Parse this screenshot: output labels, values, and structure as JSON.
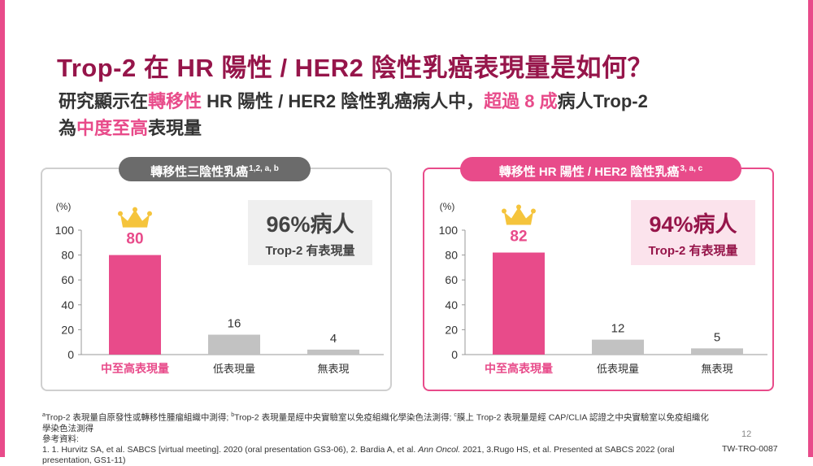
{
  "slide": {
    "title": "Trop-2 在 HR 陽性 / HER2 陰性乳癌表現量是如何？",
    "subtitle": {
      "part1": "研究顯示在",
      "hl1": "轉移性",
      "part2": " HR 陽性 / HER2 陰性乳癌病人中，",
      "hl2": "超過 8 成",
      "part3": "病人Trop-2",
      "hl3": "中度至高",
      "part4_prefix": "為",
      "part4": "表現量"
    },
    "footnote": {
      "line1_a": "a",
      "line1_a_text": "Trop-2 表現量自原發性或轉移性腫瘤組織中測得; ",
      "line1_b": "b",
      "line1_b_text": "Trop-2 表現量是經中央實驗室以免疫組織化學染色法測得; ",
      "line1_c": "c",
      "line1_c_text": "膜上 Trop-2 表現量是經 CAP/CLIA 認證之中央實驗室以免疫組織化學染色法測得",
      "line2": "參考資料:",
      "line3_pre": "1. 1. Hurvitz SA, et al. SABCS [virtual meeting]. 2020 (oral presentation GS3-06), 2. Bardia A, et al. ",
      "line3_journal": "Ann Oncol.",
      "line3_post": " 2021, 3.Rugo HS, et al. Presented at SABCS 2022 (oral presentation, GS1-11)"
    },
    "page_number": "12",
    "doc_code": "TW-TRO-0087"
  },
  "colors": {
    "accent": "#e84b8a",
    "title": "#96154a",
    "bar_gray": "#c2c2c2"
  },
  "chart_data": [
    {
      "type": "bar",
      "title": "轉移性三陰性乳癌",
      "title_sup": "1,2, a, b",
      "ylabel": "(%)",
      "ylim": [
        0,
        100
      ],
      "yticks": [
        0,
        20,
        40,
        60,
        80,
        100
      ],
      "categories": [
        "中至高表現量",
        "低表現量",
        "無表現"
      ],
      "values": [
        80,
        16,
        4
      ],
      "highlight_index": 0,
      "crown_icon": "crown-icon",
      "stat": {
        "value": "96%病人",
        "label": "Trop-2 有表現量"
      }
    },
    {
      "type": "bar",
      "title": "轉移性 HR 陽性 / HER2 陰性乳癌",
      "title_sup": "3, a, c",
      "ylabel": "(%)",
      "ylim": [
        0,
        100
      ],
      "yticks": [
        0,
        20,
        40,
        60,
        80,
        100
      ],
      "categories": [
        "中至高表現量",
        "低表現量",
        "無表現"
      ],
      "values": [
        82,
        12,
        5
      ],
      "highlight_index": 0,
      "crown_icon": "crown-icon",
      "stat": {
        "value": "94%病人",
        "label": "Trop-2 有表現量"
      }
    }
  ]
}
